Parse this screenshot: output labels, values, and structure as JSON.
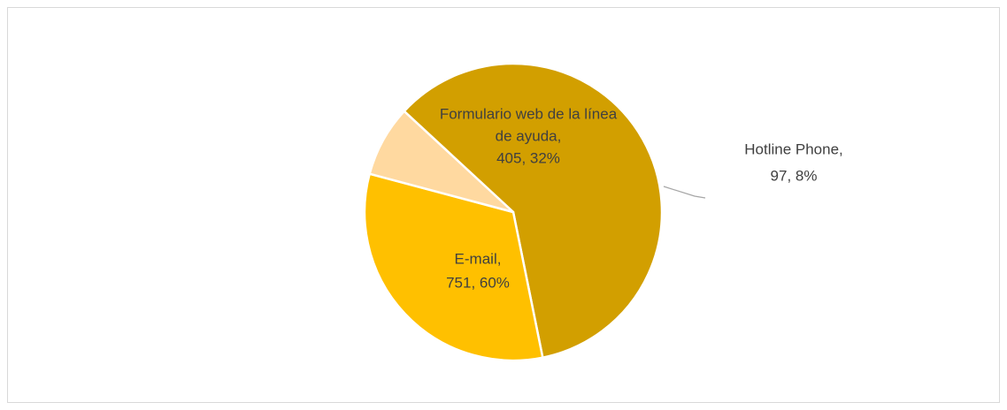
{
  "chart_data": {
    "type": "pie",
    "values": [
      751,
      405,
      97
    ],
    "value_labels": [
      [
        "E-mail,",
        "751, 60%"
      ],
      [
        "Formulario web de la línea",
        "de ayuda,",
        "405, 32%"
      ],
      [
        "Hotline Phone,",
        "97, 8%"
      ]
    ],
    "colors": [
      "#d29f00",
      "#ffc000",
      "#ffd9a0"
    ]
  }
}
